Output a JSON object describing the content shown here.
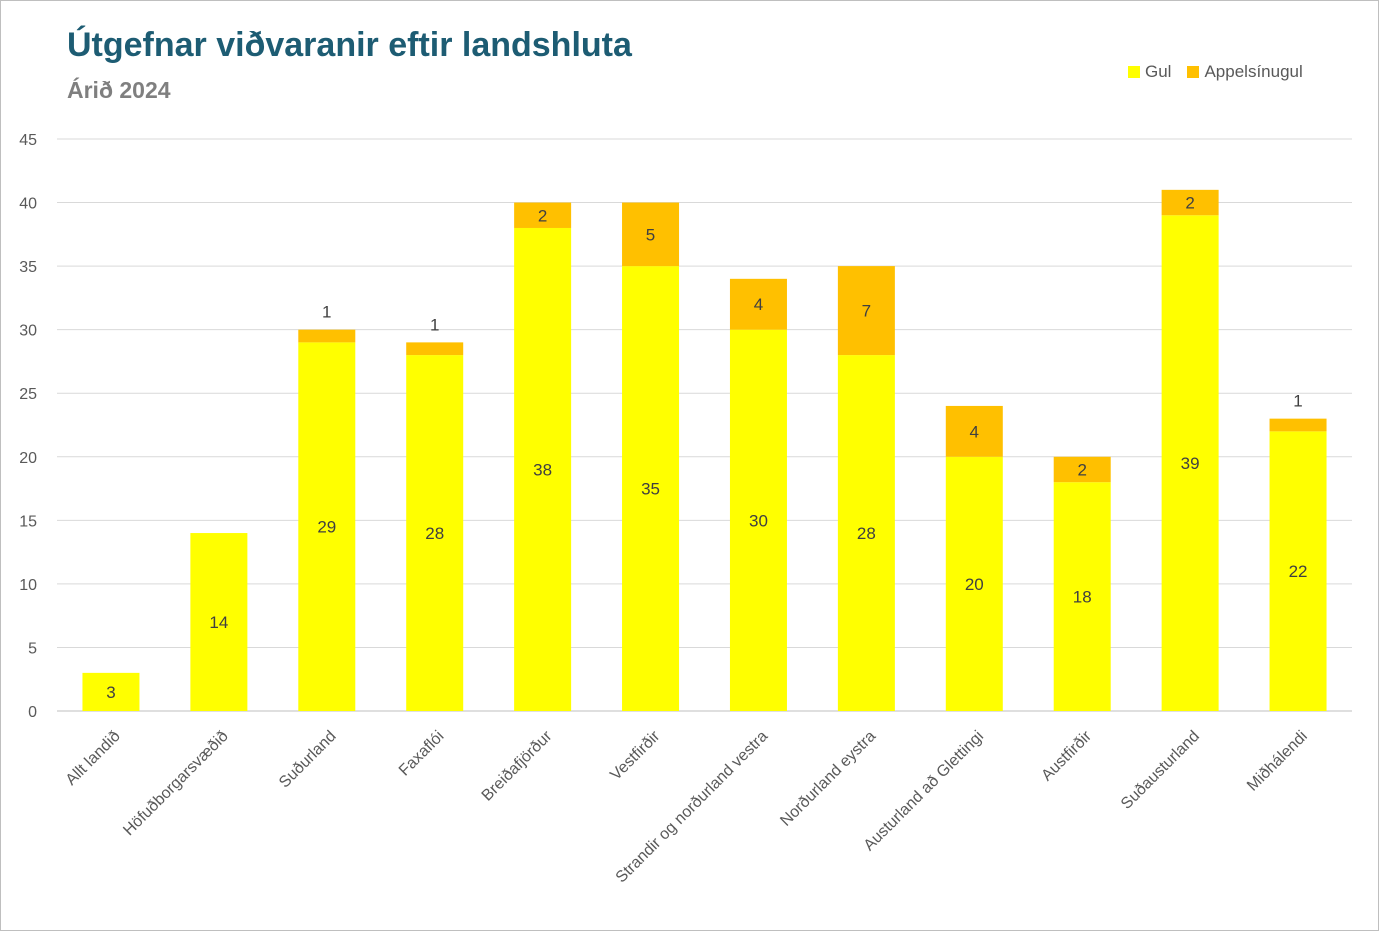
{
  "chart_data": {
    "type": "bar",
    "stacked": true,
    "title": "Útgefnar viðvaranir eftir landshluta",
    "subtitle": "Árið 2024",
    "categories": [
      "Allt landið",
      "Höfuðborgarsvæðið",
      "Suðurland",
      "Faxaflói",
      "Breiðafjörður",
      "Vestfirðir",
      "Strandir og norðurland vestra",
      "Norðurland eystra",
      "Austurland að Glettingi",
      "Austfirðir",
      "Suðausturland",
      "Miðhálendi"
    ],
    "series": [
      {
        "name": "Gul",
        "color": "#ffff00",
        "values": [
          3,
          14,
          29,
          28,
          38,
          35,
          30,
          28,
          20,
          18,
          39,
          22
        ]
      },
      {
        "name": "Appelsínugul",
        "color": "#ffc000",
        "values": [
          0,
          0,
          1,
          1,
          2,
          5,
          4,
          7,
          4,
          2,
          2,
          1
        ]
      }
    ],
    "ylim": [
      0,
      45
    ],
    "yticks": [
      0,
      5,
      10,
      15,
      20,
      25,
      30,
      35,
      40,
      45
    ],
    "grid": true,
    "legend": "top-right",
    "xlabel": "",
    "ylabel": ""
  }
}
